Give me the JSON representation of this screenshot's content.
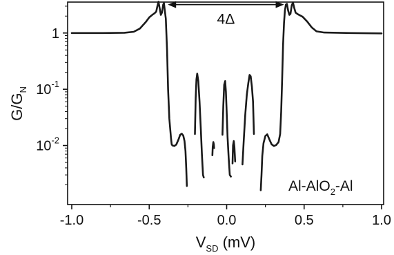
{
  "chart_data": {
    "type": "line",
    "title": "",
    "xlabel": {
      "main": "V",
      "sub": "SD",
      "unit": " (mV)"
    },
    "ylabel": {
      "main": "G/G",
      "sub": "N"
    },
    "xlim": [
      -1.0,
      1.0
    ],
    "ylim_log10": [
      -3.05,
      0.55
    ],
    "yscale": "log",
    "grid": false,
    "x_ticks": [
      {
        "value": -1.0,
        "label": "-1.0"
      },
      {
        "value": -0.5,
        "label": "-0.5"
      },
      {
        "value": 0.0,
        "label": "0.0"
      },
      {
        "value": 0.5,
        "label": "0.5"
      },
      {
        "value": 1.0,
        "label": "1.0"
      }
    ],
    "y_ticks": [
      {
        "value": 1,
        "base": "1",
        "exp": ""
      },
      {
        "value": 0.1,
        "base": "10",
        "exp": "-1"
      },
      {
        "value": 0.01,
        "base": "10",
        "exp": "-2"
      }
    ],
    "annotation_gap": {
      "label": "4Δ",
      "x_from": -0.38,
      "x_to": 0.37,
      "y": 3.2
    },
    "sample_label": {
      "parts": [
        "Al-AlO",
        "2",
        "-Al"
      ]
    },
    "line_color": "#1a1a1a",
    "series": [
      {
        "segments": [
          [
            [
              -1.0,
              1.0
            ],
            [
              -0.8,
              1.0
            ],
            [
              -0.66,
              1.01
            ],
            [
              -0.6,
              1.05
            ],
            [
              -0.56,
              1.2
            ],
            [
              -0.52,
              1.6
            ],
            [
              -0.5,
              1.9
            ],
            [
              -0.48,
              2.1
            ],
            [
              -0.465,
              2.25
            ],
            [
              -0.455,
              2.4
            ],
            [
              -0.447,
              3.0
            ],
            [
              -0.44,
              3.6
            ],
            [
              -0.433,
              2.8
            ],
            [
              -0.425,
              2.1
            ],
            [
              -0.418,
              2.3
            ],
            [
              -0.41,
              3.2
            ],
            [
              -0.405,
              3.4
            ],
            [
              -0.4,
              2.6
            ],
            [
              -0.393,
              1.8
            ],
            [
              -0.385,
              0.5
            ],
            [
              -0.378,
              0.1
            ],
            [
              -0.37,
              0.03
            ],
            [
              -0.36,
              0.014
            ],
            [
              -0.355,
              0.0105
            ],
            [
              -0.35,
              0.01
            ],
            [
              -0.338,
              0.0098
            ],
            [
              -0.325,
              0.0104
            ],
            [
              -0.31,
              0.013
            ],
            [
              -0.3,
              0.0155
            ],
            [
              -0.29,
              0.0162
            ],
            [
              -0.28,
              0.015
            ],
            [
              -0.272,
              0.012
            ],
            [
              -0.266,
              0.008
            ],
            [
              -0.261,
              0.004
            ],
            [
              -0.257,
              0.0019
            ]
          ],
          [
            [
              -0.205,
              0.016
            ],
            [
              -0.2,
              0.07
            ],
            [
              -0.195,
              0.15
            ],
            [
              -0.19,
              0.19
            ],
            [
              -0.183,
              0.14
            ],
            [
              -0.175,
              0.06
            ],
            [
              -0.167,
              0.02
            ],
            [
              -0.16,
              0.007
            ],
            [
              -0.153,
              0.003
            ],
            [
              -0.148,
              0.0027
            ]
          ],
          [
            [
              -0.092,
              0.0067
            ],
            [
              -0.09,
              0.0095
            ],
            [
              -0.086,
              0.0115
            ],
            [
              -0.083,
              0.0105
            ],
            [
              -0.081,
              0.009
            ]
          ],
          [
            [
              -0.027,
              0.0155
            ],
            [
              -0.022,
              0.05
            ],
            [
              -0.016,
              0.12
            ],
            [
              -0.01,
              0.14
            ],
            [
              -0.005,
              0.09
            ],
            [
              0.0,
              0.04
            ],
            [
              0.006,
              0.014
            ],
            [
              0.013,
              0.006
            ],
            [
              0.02,
              0.003
            ],
            [
              0.027,
              0.0028
            ]
          ],
          [
            [
              0.038,
              0.0048
            ],
            [
              0.041,
              0.01
            ],
            [
              0.046,
              0.012
            ],
            [
              0.05,
              0.0095
            ],
            [
              0.055,
              0.0052
            ]
          ],
          [
            [
              0.102,
              0.0046
            ],
            [
              0.11,
              0.012
            ],
            [
              0.12,
              0.035
            ],
            [
              0.13,
              0.08
            ],
            [
              0.14,
              0.13
            ],
            [
              0.148,
              0.18
            ],
            [
              0.155,
              0.17
            ],
            [
              0.163,
              0.11
            ],
            [
              0.17,
              0.06
            ],
            [
              0.176,
              0.016
            ]
          ],
          [
            [
              0.22,
              0.0016
            ],
            [
              0.225,
              0.003
            ],
            [
              0.23,
              0.0065
            ],
            [
              0.238,
              0.011
            ],
            [
              0.25,
              0.0148
            ],
            [
              0.262,
              0.0158
            ],
            [
              0.275,
              0.013
            ],
            [
              0.29,
              0.0105
            ],
            [
              0.305,
              0.0098
            ],
            [
              0.32,
              0.0102
            ],
            [
              0.335,
              0.0115
            ],
            [
              0.345,
              0.016
            ],
            [
              0.352,
              0.04
            ],
            [
              0.358,
              0.15
            ],
            [
              0.364,
              0.6
            ],
            [
              0.37,
              1.5
            ],
            [
              0.376,
              2.5
            ],
            [
              0.382,
              3.2
            ],
            [
              0.389,
              3.3
            ],
            [
              0.397,
              2.5
            ],
            [
              0.405,
              2.1
            ],
            [
              0.412,
              2.2
            ],
            [
              0.42,
              3.1
            ],
            [
              0.428,
              3.5
            ],
            [
              0.436,
              2.8
            ],
            [
              0.445,
              2.3
            ],
            [
              0.46,
              2.15
            ],
            [
              0.49,
              1.95
            ],
            [
              0.52,
              1.6
            ],
            [
              0.55,
              1.25
            ],
            [
              0.58,
              1.07
            ],
            [
              0.63,
              1.02
            ],
            [
              0.8,
              1.0
            ],
            [
              1.0,
              0.985
            ]
          ]
        ]
      }
    ]
  }
}
